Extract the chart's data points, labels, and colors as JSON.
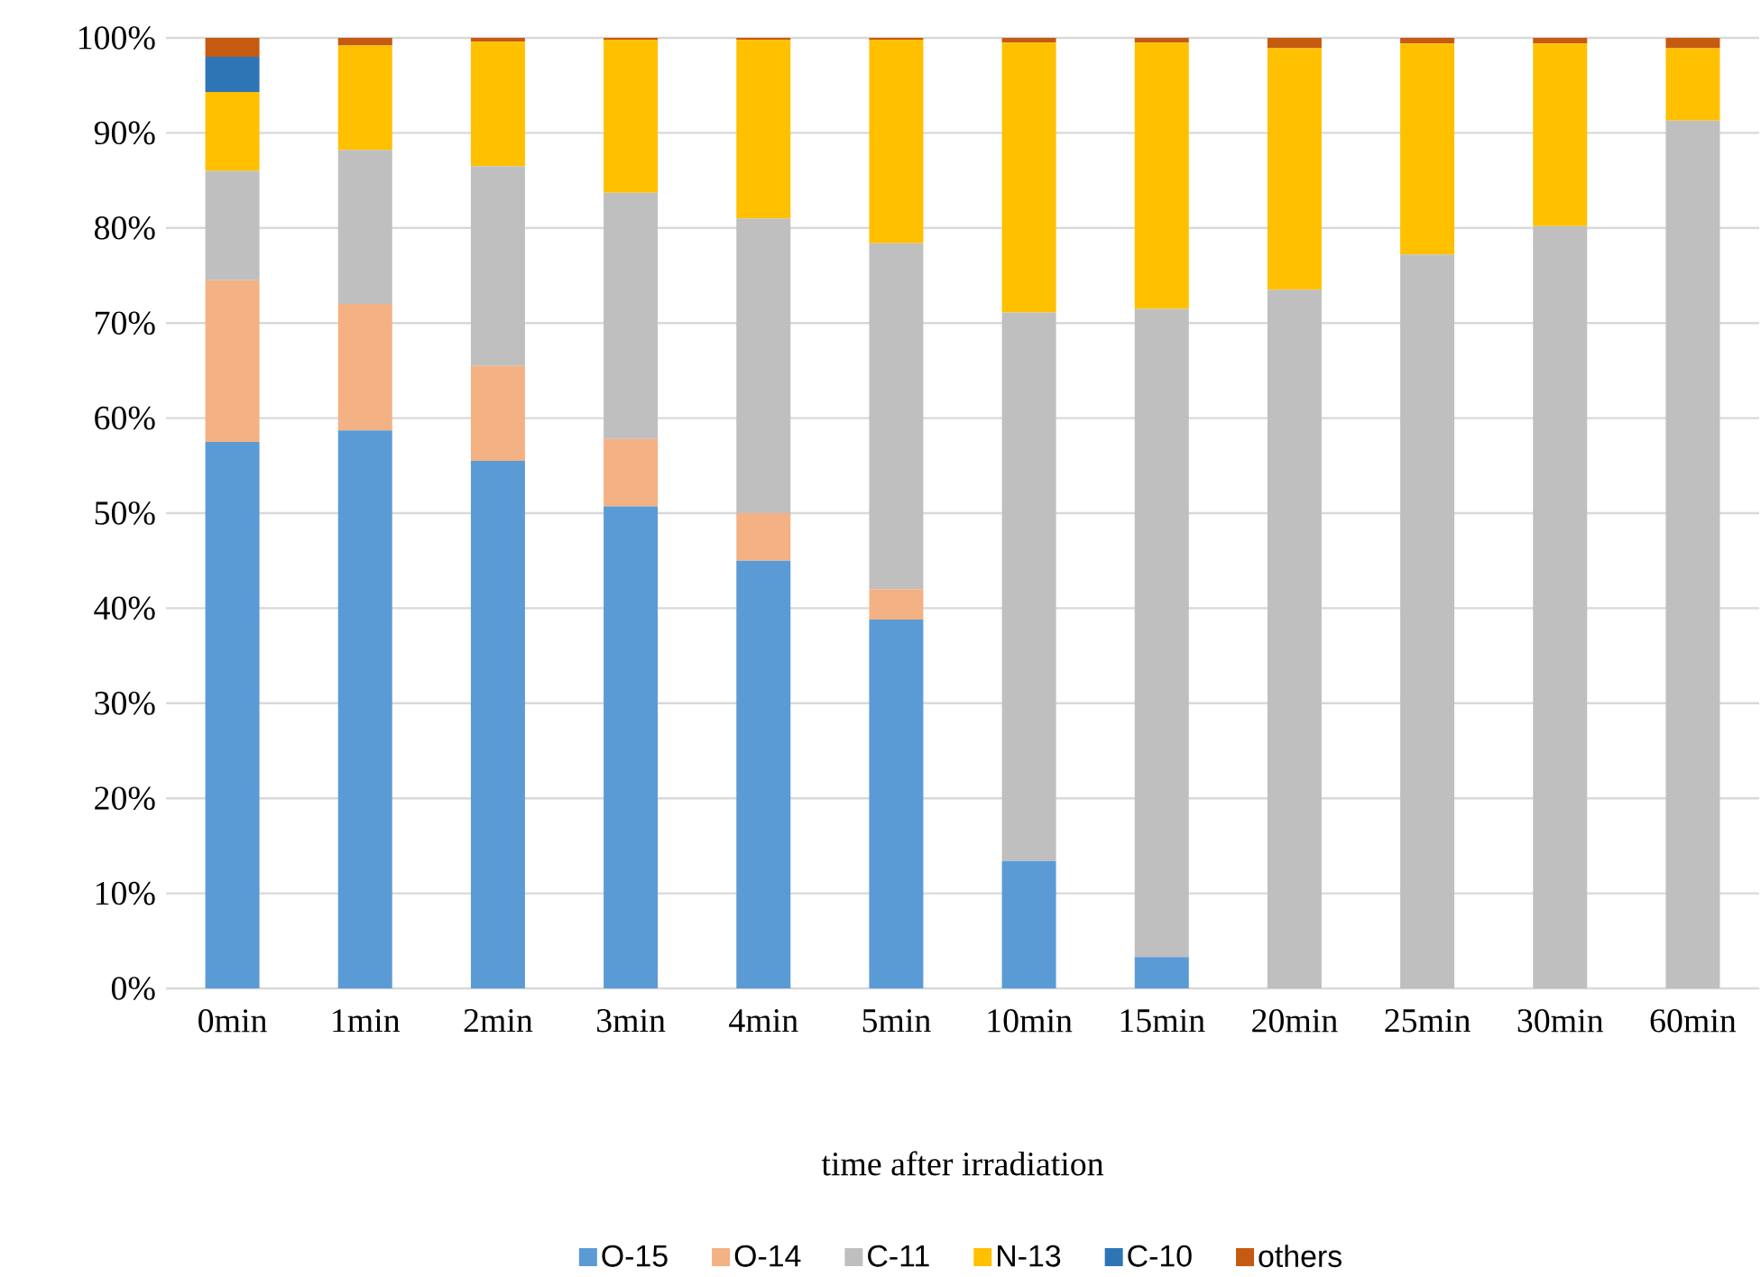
{
  "chart_data": {
    "type": "bar",
    "stacked": true,
    "xlabel": "time after irradiation",
    "categories": [
      "0min",
      "1min",
      "2min",
      "3min",
      "4min",
      "5min",
      "10min",
      "15min",
      "20min",
      "25min",
      "30min",
      "60min"
    ],
    "series": [
      {
        "name": "O-15",
        "color": "#5b9bd5",
        "values": [
          57.5,
          58.7,
          55.5,
          50.7,
          45,
          38.8,
          13.4,
          3.3,
          0,
          0,
          0,
          0
        ]
      },
      {
        "name": "O-14",
        "color": "#f4b183",
        "values": [
          17,
          13.3,
          10,
          7.1,
          5,
          3.2,
          0,
          0,
          0,
          0,
          0,
          0
        ]
      },
      {
        "name": "C-11",
        "color": "#bfbfbf",
        "values": [
          11.5,
          16.2,
          21,
          25.9,
          31,
          36.4,
          57.7,
          68.2,
          73.5,
          77.2,
          80.2,
          91.3
        ]
      },
      {
        "name": "N-13",
        "color": "#ffc000",
        "values": [
          8.3,
          11,
          13.1,
          16.1,
          18.8,
          21.4,
          28.4,
          28,
          25.4,
          22.2,
          19.2,
          7.6
        ]
      },
      {
        "name": "C-10",
        "color": "#2e75b6",
        "values": [
          3.7,
          0,
          0,
          0,
          0,
          0,
          0,
          0,
          0,
          0,
          0,
          0
        ]
      },
      {
        "name": "others",
        "color": "#c55a11",
        "values": [
          2,
          0.8,
          0.4,
          0.2,
          0.2,
          0.2,
          0.5,
          0.5,
          1.1,
          0.6,
          0.6,
          1.1
        ]
      }
    ],
    "ylim": [
      0,
      100
    ],
    "yticks": [
      {
        "value": 0,
        "label": "0%"
      },
      {
        "value": 10,
        "label": "10%"
      },
      {
        "value": 20,
        "label": "20%"
      },
      {
        "value": 30,
        "label": "30%"
      },
      {
        "value": 40,
        "label": "40%"
      },
      {
        "value": 50,
        "label": "50%"
      },
      {
        "value": 60,
        "label": "60%"
      },
      {
        "value": 70,
        "label": "70%"
      },
      {
        "value": 80,
        "label": "80%"
      },
      {
        "value": 90,
        "label": "90%"
      },
      {
        "value": 100,
        "label": "100%"
      }
    ],
    "grid": "y",
    "legend": "bottom"
  }
}
